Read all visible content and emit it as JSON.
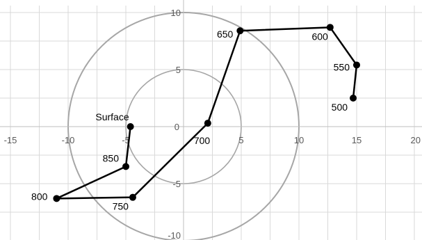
{
  "chart_data": {
    "type": "scatter",
    "title": "",
    "xlabel": "",
    "ylabel": "",
    "xlim": [
      -15,
      20
    ],
    "ylim": [
      -10,
      10
    ],
    "x_ticks": [
      -15,
      -10,
      -5,
      0,
      5,
      10,
      15,
      20
    ],
    "y_ticks": [
      -10,
      -5,
      0,
      5,
      10
    ],
    "grid": true,
    "legend": "none",
    "rings": [
      {
        "radius": 5,
        "color": "#bfbfbf"
      },
      {
        "radius": 10,
        "color": "#a6a6a6"
      }
    ],
    "series": [
      {
        "color": "#000000",
        "marker": "circle",
        "points": [
          {
            "label": "Surface",
            "x": -4.6,
            "y": 0.0
          },
          {
            "label": "850",
            "x": -5.0,
            "y": -3.5
          },
          {
            "label": "800",
            "x": -11.0,
            "y": -6.3
          },
          {
            "label": "750",
            "x": -4.4,
            "y": -6.2
          },
          {
            "label": "700",
            "x": 2.1,
            "y": 0.3
          },
          {
            "label": "650",
            "x": 4.9,
            "y": 8.4
          },
          {
            "label": "600",
            "x": 12.7,
            "y": 8.7
          },
          {
            "label": "550",
            "x": 15.0,
            "y": 5.4
          },
          {
            "label": "500",
            "x": 14.7,
            "y": 2.5
          }
        ]
      }
    ]
  }
}
